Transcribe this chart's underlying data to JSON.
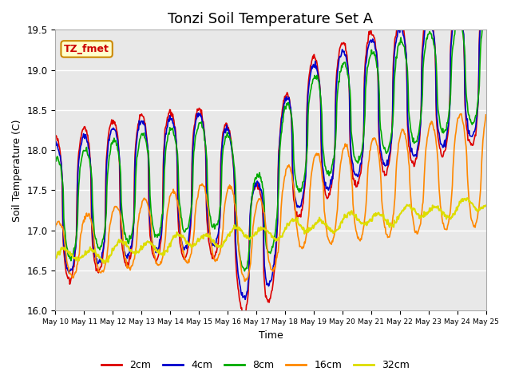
{
  "title": "Tonzi Soil Temperature Set A",
  "xlabel": "Time",
  "ylabel": "Soil Temperature (C)",
  "annotation_text": "TZ_fmet",
  "annotation_bbox_facecolor": "#ffffcc",
  "annotation_bbox_edgecolor": "#cc8800",
  "annotation_text_color": "#cc0000",
  "ylim": [
    16.0,
    19.5
  ],
  "background_color": "#ffffff",
  "plot_bg_color": "#e8e8e8",
  "grid_color": "#ffffff",
  "series": [
    {
      "label": "2cm",
      "color": "#dd0000",
      "linewidth": 1.2
    },
    {
      "label": "4cm",
      "color": "#0000cc",
      "linewidth": 1.2
    },
    {
      "label": "8cm",
      "color": "#00aa00",
      "linewidth": 1.2
    },
    {
      "label": "16cm",
      "color": "#ff8800",
      "linewidth": 1.2
    },
    {
      "label": "32cm",
      "color": "#dddd00",
      "linewidth": 1.5
    }
  ],
  "xtick_labels": [
    "May 10",
    "May 11",
    "May 12",
    "May 13",
    "May 14",
    "May 15",
    "May 16",
    "May 17",
    "May 18",
    "May 19",
    "May 20",
    "May 21",
    "May 22",
    "May 23",
    "May 24",
    "May 25"
  ],
  "legend_ncol": 5,
  "title_fontsize": 13
}
